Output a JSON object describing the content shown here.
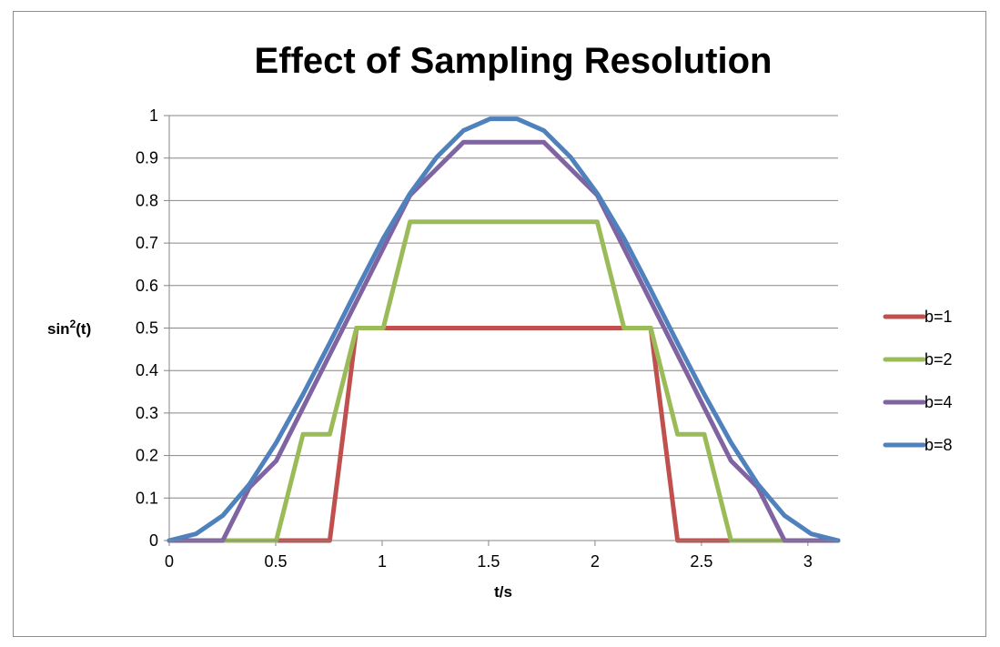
{
  "chart_data": {
    "type": "line",
    "title": "Effect of Sampling Resolution",
    "xlabel": "t/s",
    "ylabel_base": "sin",
    "ylabel_sup": "2",
    "ylabel_tail": "(t)",
    "xlim": [
      0,
      3.1416
    ],
    "ylim": [
      0,
      1
    ],
    "x_ticks": [
      "0",
      "0.5",
      "1",
      "1.5",
      "2",
      "2.5",
      "3"
    ],
    "y_ticks": [
      "0",
      "0.1",
      "0.2",
      "0.3",
      "0.4",
      "0.5",
      "0.6",
      "0.7",
      "0.8",
      "0.9",
      "1"
    ],
    "grid": "horizontal",
    "legend_position": "right",
    "x": [
      0,
      0.1257,
      0.2513,
      0.377,
      0.5027,
      0.6283,
      0.754,
      0.8796,
      1.0053,
      1.131,
      1.2566,
      1.3823,
      1.508,
      1.6336,
      1.7593,
      1.885,
      2.0106,
      2.1363,
      2.2619,
      2.3876,
      2.5133,
      2.6389,
      2.7646,
      2.8903,
      3.0159,
      3.1416
    ],
    "series": [
      {
        "name": "b=1",
        "color": "#c0504d",
        "values": [
          0,
          0,
          0,
          0,
          0,
          0,
          0,
          0.5,
          0.5,
          0.5,
          0.5,
          0.5,
          0.5,
          0.5,
          0.5,
          0.5,
          0.5,
          0.5,
          0.5,
          0,
          0,
          0,
          0,
          0,
          0,
          0
        ]
      },
      {
        "name": "b=2",
        "color": "#9bbb59",
        "values": [
          0,
          0,
          0,
          0,
          0,
          0.25,
          0.25,
          0.5,
          0.5,
          0.75,
          0.75,
          0.75,
          0.75,
          0.75,
          0.75,
          0.75,
          0.75,
          0.5,
          0.5,
          0.25,
          0.25,
          0,
          0,
          0,
          0,
          0
        ]
      },
      {
        "name": "b=4",
        "color": "#8064a2",
        "values": [
          0,
          0,
          0,
          0.125,
          0.1875,
          0.3125,
          0.4375,
          0.5625,
          0.6875,
          0.8125,
          0.875,
          0.9375,
          0.9375,
          0.9375,
          0.9375,
          0.875,
          0.8125,
          0.6875,
          0.5625,
          0.4375,
          0.3125,
          0.1875,
          0.125,
          0,
          0,
          0
        ]
      },
      {
        "name": "b=8",
        "color": "#4f81bd",
        "values": [
          0,
          0.0156,
          0.0586,
          0.1328,
          0.2305,
          0.3438,
          0.4648,
          0.5898,
          0.7109,
          0.8164,
          0.9023,
          0.9648,
          0.9922,
          0.9922,
          0.9648,
          0.9023,
          0.8164,
          0.7109,
          0.5898,
          0.4648,
          0.3438,
          0.2305,
          0.1328,
          0.0586,
          0.0156,
          0
        ]
      }
    ],
    "gridline_color": "#868686",
    "axis_color": "#868686"
  }
}
